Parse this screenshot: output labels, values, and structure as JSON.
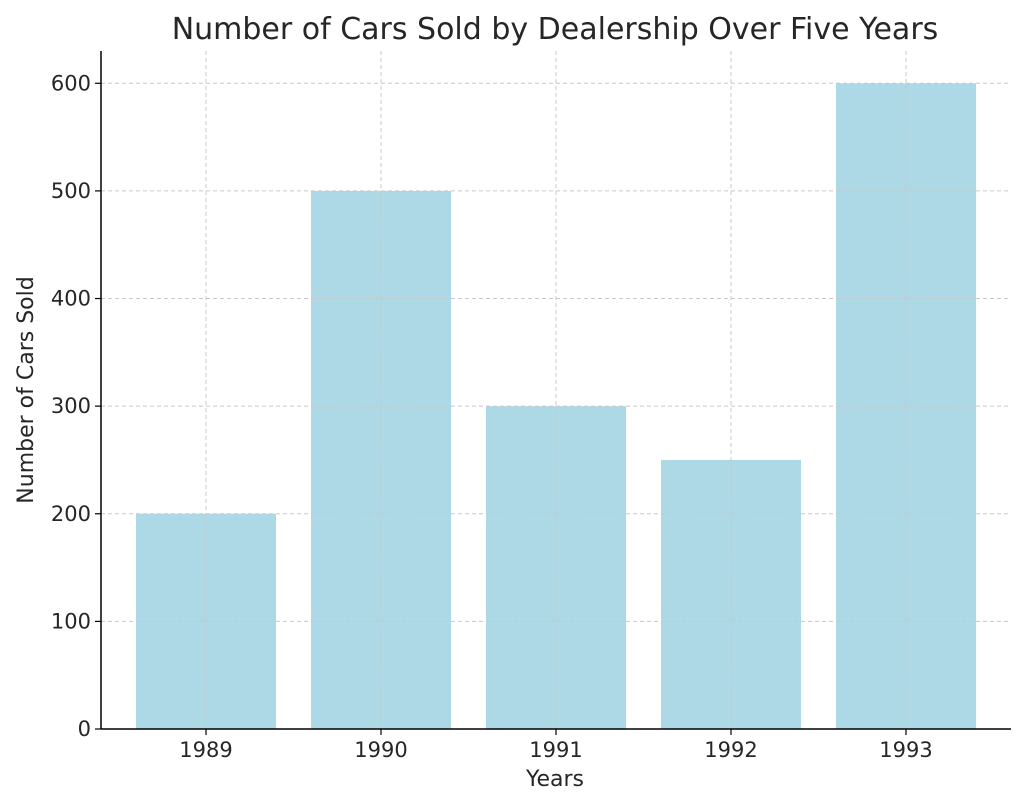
{
  "chart_data": {
    "type": "bar",
    "title": "Number of Cars Sold by Dealership Over Five Years",
    "xlabel": "Years",
    "ylabel": "Number of Cars Sold",
    "categories": [
      "1989",
      "1990",
      "1991",
      "1992",
      "1993"
    ],
    "values": [
      200,
      500,
      300,
      250,
      600
    ],
    "ylim": [
      0,
      630
    ],
    "yticks": [
      0,
      100,
      200,
      300,
      400,
      500,
      600
    ],
    "grid": true,
    "colors": {
      "bar": "#add8e6",
      "grid": "#c8c8c8",
      "axis": "#000000",
      "text": "#262626"
    }
  }
}
